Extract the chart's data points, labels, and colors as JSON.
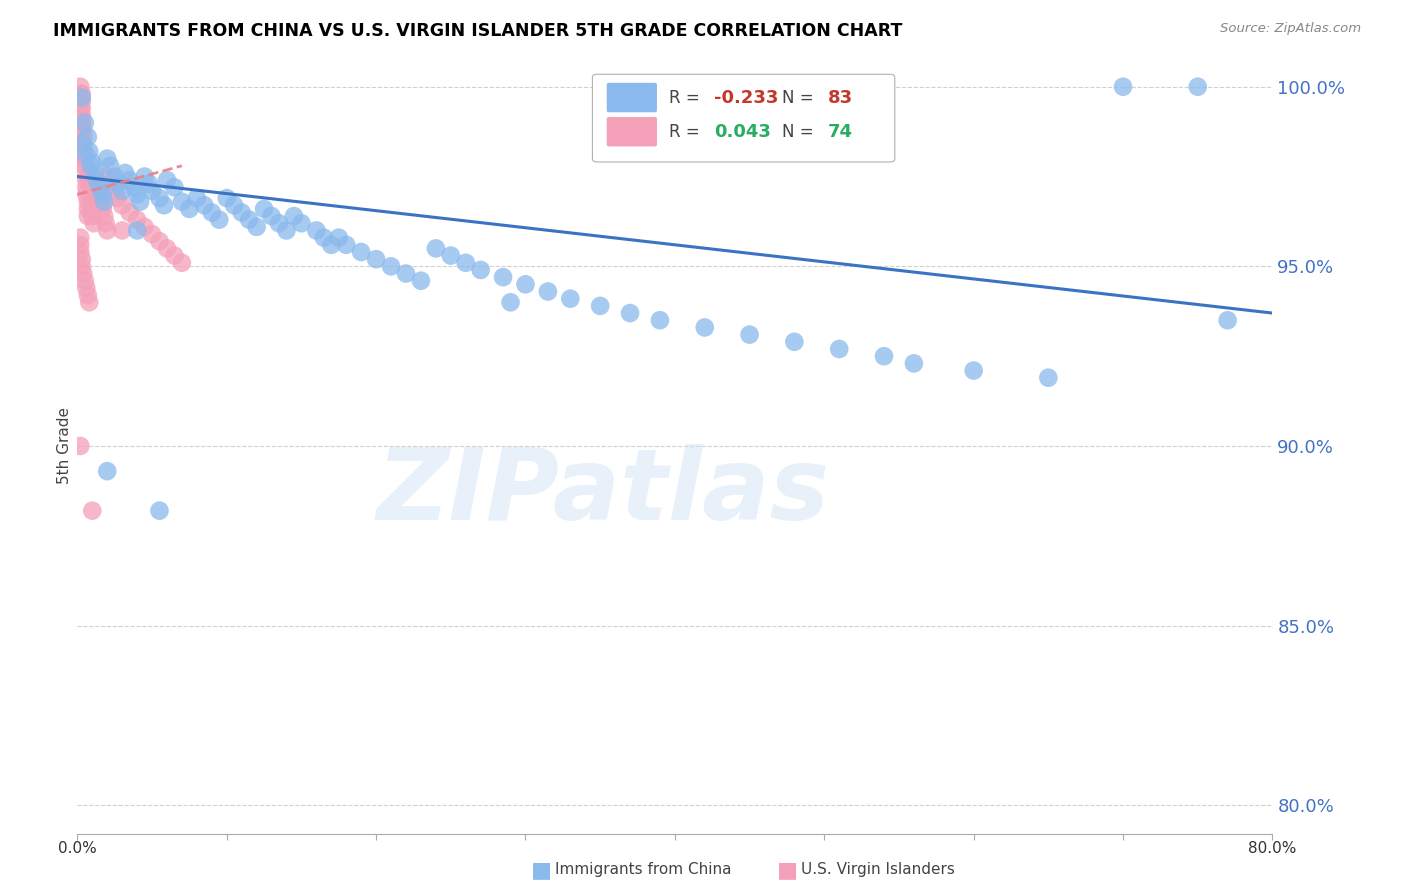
{
  "title": "IMMIGRANTS FROM CHINA VS U.S. VIRGIN ISLANDER 5TH GRADE CORRELATION CHART",
  "source": "Source: ZipAtlas.com",
  "ylabel": "5th Grade",
  "ytick_labels": [
    "100.0%",
    "95.0%",
    "90.0%",
    "85.0%",
    "80.0%"
  ],
  "ytick_values": [
    1.0,
    0.95,
    0.9,
    0.85,
    0.8
  ],
  "xlim": [
    0.0,
    0.8
  ],
  "ylim": [
    0.792,
    1.008
  ],
  "legend_blue_r": "-0.233",
  "legend_blue_n": "83",
  "legend_pink_r": "0.043",
  "legend_pink_n": "74",
  "blue_color": "#8ab9ed",
  "pink_color": "#f4a0b8",
  "blue_line_color": "#3a72c4",
  "pink_line_color": "#e8808a",
  "watermark": "ZIPatlas",
  "blue_scatter_x": [
    0.003,
    0.005,
    0.007,
    0.008,
    0.01,
    0.012,
    0.013,
    0.015,
    0.017,
    0.018,
    0.02,
    0.022,
    0.025,
    0.027,
    0.03,
    0.032,
    0.035,
    0.038,
    0.04,
    0.042,
    0.045,
    0.048,
    0.05,
    0.055,
    0.058,
    0.06,
    0.065,
    0.07,
    0.075,
    0.08,
    0.085,
    0.09,
    0.095,
    0.1,
    0.105,
    0.11,
    0.115,
    0.12,
    0.125,
    0.13,
    0.135,
    0.14,
    0.145,
    0.15,
    0.16,
    0.165,
    0.17,
    0.175,
    0.18,
    0.19,
    0.2,
    0.21,
    0.22,
    0.23,
    0.24,
    0.25,
    0.26,
    0.27,
    0.285,
    0.3,
    0.315,
    0.33,
    0.35,
    0.37,
    0.39,
    0.42,
    0.45,
    0.48,
    0.51,
    0.54,
    0.56,
    0.6,
    0.65,
    0.7,
    0.75,
    0.77,
    0.003,
    0.006,
    0.009,
    0.04,
    0.02,
    0.055,
    0.29
  ],
  "blue_scatter_y": [
    0.997,
    0.99,
    0.986,
    0.982,
    0.979,
    0.976,
    0.974,
    0.972,
    0.97,
    0.968,
    0.98,
    0.978,
    0.975,
    0.973,
    0.971,
    0.976,
    0.974,
    0.972,
    0.97,
    0.968,
    0.975,
    0.973,
    0.971,
    0.969,
    0.967,
    0.974,
    0.972,
    0.968,
    0.966,
    0.969,
    0.967,
    0.965,
    0.963,
    0.969,
    0.967,
    0.965,
    0.963,
    0.961,
    0.966,
    0.964,
    0.962,
    0.96,
    0.964,
    0.962,
    0.96,
    0.958,
    0.956,
    0.958,
    0.956,
    0.954,
    0.952,
    0.95,
    0.948,
    0.946,
    0.955,
    0.953,
    0.951,
    0.949,
    0.947,
    0.945,
    0.943,
    0.941,
    0.939,
    0.937,
    0.935,
    0.933,
    0.931,
    0.929,
    0.927,
    0.925,
    0.923,
    0.921,
    0.919,
    1.0,
    1.0,
    0.935,
    0.984,
    0.981,
    0.978,
    0.96,
    0.893,
    0.882,
    0.94
  ],
  "pink_scatter_x": [
    0.002,
    0.002,
    0.002,
    0.002,
    0.002,
    0.002,
    0.002,
    0.002,
    0.002,
    0.002,
    0.002,
    0.003,
    0.003,
    0.003,
    0.003,
    0.003,
    0.004,
    0.004,
    0.004,
    0.004,
    0.005,
    0.005,
    0.005,
    0.006,
    0.006,
    0.006,
    0.007,
    0.007,
    0.007,
    0.008,
    0.008,
    0.009,
    0.009,
    0.01,
    0.01,
    0.01,
    0.011,
    0.012,
    0.012,
    0.013,
    0.014,
    0.015,
    0.015,
    0.016,
    0.017,
    0.018,
    0.019,
    0.02,
    0.02,
    0.022,
    0.025,
    0.027,
    0.03,
    0.035,
    0.04,
    0.045,
    0.05,
    0.055,
    0.06,
    0.065,
    0.07,
    0.002,
    0.002,
    0.002,
    0.003,
    0.003,
    0.004,
    0.005,
    0.006,
    0.007,
    0.008,
    0.03,
    0.002,
    0.01
  ],
  "pink_scatter_y": [
    1.0,
    0.998,
    0.996,
    0.994,
    0.992,
    0.99,
    0.988,
    0.986,
    0.984,
    0.982,
    0.98,
    0.998,
    0.996,
    0.994,
    0.992,
    0.99,
    0.988,
    0.986,
    0.984,
    0.982,
    0.98,
    0.978,
    0.976,
    0.974,
    0.972,
    0.97,
    0.968,
    0.966,
    0.964,
    0.976,
    0.974,
    0.972,
    0.97,
    0.968,
    0.966,
    0.964,
    0.962,
    0.975,
    0.973,
    0.971,
    0.969,
    0.972,
    0.97,
    0.968,
    0.966,
    0.964,
    0.962,
    0.96,
    0.975,
    0.973,
    0.971,
    0.969,
    0.967,
    0.965,
    0.963,
    0.961,
    0.959,
    0.957,
    0.955,
    0.953,
    0.951,
    0.958,
    0.956,
    0.954,
    0.952,
    0.95,
    0.948,
    0.946,
    0.944,
    0.942,
    0.94,
    0.96,
    0.9,
    0.882
  ]
}
